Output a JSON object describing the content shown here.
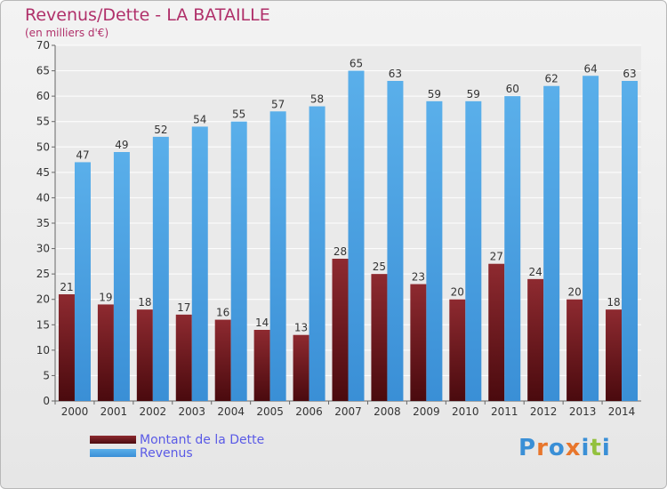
{
  "chart_data": {
    "type": "bar",
    "title": "Revenus/Dette - LA BATAILLE",
    "subtitle": "(en milliers d'€)",
    "categories": [
      "2000",
      "2001",
      "2002",
      "2003",
      "2004",
      "2005",
      "2006",
      "2007",
      "2008",
      "2009",
      "2010",
      "2011",
      "2012",
      "2013",
      "2014"
    ],
    "series": [
      {
        "name": "Montant de la Dette",
        "color": "#7a1c22",
        "values": [
          21,
          19,
          18,
          17,
          16,
          14,
          13,
          28,
          25,
          23,
          20,
          27,
          24,
          20,
          18
        ]
      },
      {
        "name": "Revenus",
        "color": "#4ea3e3",
        "values": [
          47,
          49,
          52,
          54,
          55,
          57,
          58,
          65,
          63,
          59,
          59,
          60,
          62,
          64,
          63
        ]
      }
    ],
    "ylim": [
      0,
      70
    ],
    "yticks": [
      0,
      5,
      10,
      15,
      20,
      25,
      30,
      35,
      40,
      45,
      50,
      55,
      60,
      65,
      70
    ],
    "grid": true,
    "legend_position": "bottom-left"
  },
  "logo": {
    "text": "Proxiti",
    "letter_colors": [
      "#3a8fd6",
      "#e8762c",
      "#3a8fd6",
      "#e8762c",
      "#3a8fd6",
      "#93c13e",
      "#3a8fd6"
    ]
  }
}
